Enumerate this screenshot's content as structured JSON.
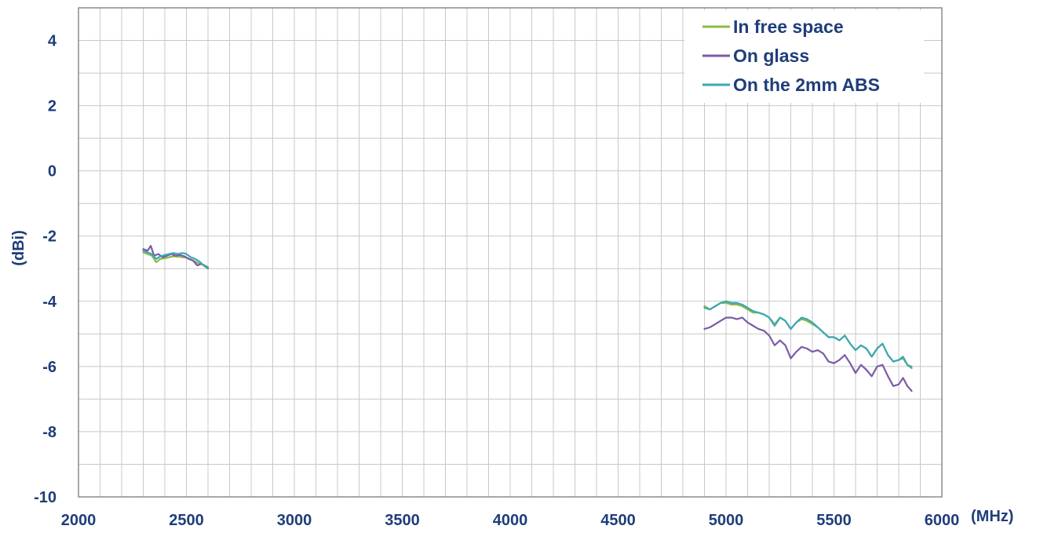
{
  "chart_data": {
    "type": "line",
    "title": "",
    "xlabel": "(MHz)",
    "ylabel": "(dBi)",
    "xlim": [
      2000,
      6000
    ],
    "ylim": [
      -10,
      5
    ],
    "x_ticks": [
      2000,
      2500,
      3000,
      3500,
      4000,
      4500,
      5000,
      5500,
      6000
    ],
    "y_ticks": [
      4,
      2,
      0,
      -2,
      -4,
      -6,
      -8,
      -10
    ],
    "x_tick_labels": [
      "2000",
      "2500",
      "3000",
      "3500",
      "4000",
      "4500",
      "5000",
      "5500",
      "6000"
    ],
    "y_tick_labels": [
      "4",
      "2",
      "0",
      "-2",
      "-4",
      "-6",
      "-8",
      "-10"
    ],
    "grid": true,
    "legend_position": "top-right",
    "colors": {
      "axis_text": "#1f3d7a",
      "grid": "#c8c8c8",
      "frame": "#8c8c8c"
    },
    "series": [
      {
        "name": "In free space",
        "color": "#8db844",
        "segments": [
          [
            [
              2300,
              -2.5
            ],
            [
              2320,
              -2.55
            ],
            [
              2340,
              -2.6
            ],
            [
              2360,
              -2.8
            ],
            [
              2380,
              -2.7
            ],
            [
              2400,
              -2.68
            ],
            [
              2420,
              -2.65
            ],
            [
              2440,
              -2.62
            ],
            [
              2460,
              -2.63
            ],
            [
              2480,
              -2.65
            ],
            [
              2500,
              -2.66
            ],
            [
              2520,
              -2.72
            ],
            [
              2540,
              -2.78
            ],
            [
              2560,
              -2.85
            ],
            [
              2580,
              -2.88
            ],
            [
              2600,
              -2.95
            ]
          ],
          [
            [
              4900,
              -4.15
            ],
            [
              4925,
              -4.25
            ],
            [
              4950,
              -4.15
            ],
            [
              4975,
              -4.05
            ],
            [
              5000,
              -4.05
            ],
            [
              5025,
              -4.1
            ],
            [
              5050,
              -4.1
            ],
            [
              5075,
              -4.15
            ],
            [
              5100,
              -4.25
            ],
            [
              5125,
              -4.35
            ],
            [
              5150,
              -4.35
            ],
            [
              5175,
              -4.4
            ],
            [
              5200,
              -4.5
            ],
            [
              5225,
              -4.7
            ],
            [
              5250,
              -4.5
            ],
            [
              5275,
              -4.6
            ],
            [
              5300,
              -4.85
            ],
            [
              5325,
              -4.65
            ],
            [
              5350,
              -4.55
            ],
            [
              5375,
              -4.6
            ],
            [
              5400,
              -4.7
            ],
            [
              5425,
              -4.8
            ],
            [
              5450,
              -4.95
            ],
            [
              5475,
              -5.1
            ],
            [
              5500,
              -5.1
            ],
            [
              5525,
              -5.2
            ],
            [
              5550,
              -5.05
            ],
            [
              5575,
              -5.3
            ],
            [
              5600,
              -5.5
            ],
            [
              5625,
              -5.35
            ],
            [
              5650,
              -5.45
            ],
            [
              5675,
              -5.7
            ],
            [
              5700,
              -5.45
            ],
            [
              5725,
              -5.3
            ],
            [
              5750,
              -5.65
            ],
            [
              5775,
              -5.85
            ],
            [
              5800,
              -5.8
            ],
            [
              5820,
              -5.75
            ],
            [
              5840,
              -5.95
            ],
            [
              5860,
              -6.0
            ]
          ]
        ]
      },
      {
        "name": "On glass",
        "color": "#7b5ba6",
        "segments": [
          [
            [
              2300,
              -2.4
            ],
            [
              2320,
              -2.45
            ],
            [
              2335,
              -2.3
            ],
            [
              2350,
              -2.6
            ],
            [
              2370,
              -2.55
            ],
            [
              2390,
              -2.65
            ],
            [
              2410,
              -2.6
            ],
            [
              2430,
              -2.55
            ],
            [
              2450,
              -2.6
            ],
            [
              2470,
              -2.58
            ],
            [
              2490,
              -2.62
            ],
            [
              2510,
              -2.7
            ],
            [
              2530,
              -2.75
            ],
            [
              2550,
              -2.9
            ],
            [
              2570,
              -2.85
            ],
            [
              2590,
              -2.95
            ],
            [
              2600,
              -2.98
            ]
          ],
          [
            [
              4900,
              -4.85
            ],
            [
              4925,
              -4.8
            ],
            [
              4950,
              -4.7
            ],
            [
              4975,
              -4.6
            ],
            [
              5000,
              -4.5
            ],
            [
              5025,
              -4.5
            ],
            [
              5050,
              -4.55
            ],
            [
              5075,
              -4.5
            ],
            [
              5100,
              -4.65
            ],
            [
              5125,
              -4.75
            ],
            [
              5150,
              -4.85
            ],
            [
              5175,
              -4.9
            ],
            [
              5200,
              -5.05
            ],
            [
              5225,
              -5.35
            ],
            [
              5250,
              -5.2
            ],
            [
              5275,
              -5.35
            ],
            [
              5300,
              -5.75
            ],
            [
              5325,
              -5.55
            ],
            [
              5350,
              -5.4
            ],
            [
              5375,
              -5.45
            ],
            [
              5400,
              -5.55
            ],
            [
              5425,
              -5.5
            ],
            [
              5450,
              -5.6
            ],
            [
              5475,
              -5.85
            ],
            [
              5500,
              -5.9
            ],
            [
              5525,
              -5.8
            ],
            [
              5550,
              -5.65
            ],
            [
              5575,
              -5.9
            ],
            [
              5600,
              -6.2
            ],
            [
              5625,
              -5.95
            ],
            [
              5650,
              -6.1
            ],
            [
              5675,
              -6.3
            ],
            [
              5700,
              -6.0
            ],
            [
              5725,
              -5.95
            ],
            [
              5750,
              -6.3
            ],
            [
              5775,
              -6.6
            ],
            [
              5800,
              -6.55
            ],
            [
              5820,
              -6.35
            ],
            [
              5840,
              -6.6
            ],
            [
              5860,
              -6.75
            ]
          ]
        ]
      },
      {
        "name": "On the 2mm ABS",
        "color": "#3aa8b5",
        "segments": [
          [
            [
              2300,
              -2.45
            ],
            [
              2320,
              -2.5
            ],
            [
              2340,
              -2.55
            ],
            [
              2360,
              -2.7
            ],
            [
              2380,
              -2.62
            ],
            [
              2400,
              -2.58
            ],
            [
              2420,
              -2.55
            ],
            [
              2440,
              -2.52
            ],
            [
              2460,
              -2.55
            ],
            [
              2480,
              -2.52
            ],
            [
              2500,
              -2.55
            ],
            [
              2520,
              -2.65
            ],
            [
              2540,
              -2.7
            ],
            [
              2560,
              -2.78
            ],
            [
              2580,
              -2.9
            ],
            [
              2600,
              -3.0
            ]
          ],
          [
            [
              4900,
              -4.2
            ],
            [
              4925,
              -4.25
            ],
            [
              4950,
              -4.15
            ],
            [
              4975,
              -4.05
            ],
            [
              5000,
              -4.0
            ],
            [
              5025,
              -4.05
            ],
            [
              5050,
              -4.05
            ],
            [
              5075,
              -4.1
            ],
            [
              5100,
              -4.2
            ],
            [
              5125,
              -4.3
            ],
            [
              5150,
              -4.35
            ],
            [
              5175,
              -4.4
            ],
            [
              5200,
              -4.5
            ],
            [
              5225,
              -4.75
            ],
            [
              5250,
              -4.5
            ],
            [
              5275,
              -4.6
            ],
            [
              5300,
              -4.85
            ],
            [
              5325,
              -4.65
            ],
            [
              5350,
              -4.5
            ],
            [
              5375,
              -4.55
            ],
            [
              5400,
              -4.65
            ],
            [
              5425,
              -4.8
            ],
            [
              5450,
              -4.95
            ],
            [
              5475,
              -5.1
            ],
            [
              5500,
              -5.1
            ],
            [
              5525,
              -5.2
            ],
            [
              5550,
              -5.05
            ],
            [
              5575,
              -5.3
            ],
            [
              5600,
              -5.5
            ],
            [
              5625,
              -5.35
            ],
            [
              5650,
              -5.45
            ],
            [
              5675,
              -5.7
            ],
            [
              5700,
              -5.45
            ],
            [
              5725,
              -5.3
            ],
            [
              5750,
              -5.65
            ],
            [
              5775,
              -5.85
            ],
            [
              5800,
              -5.8
            ],
            [
              5820,
              -5.7
            ],
            [
              5840,
              -5.95
            ],
            [
              5860,
              -6.05
            ]
          ]
        ]
      }
    ]
  }
}
